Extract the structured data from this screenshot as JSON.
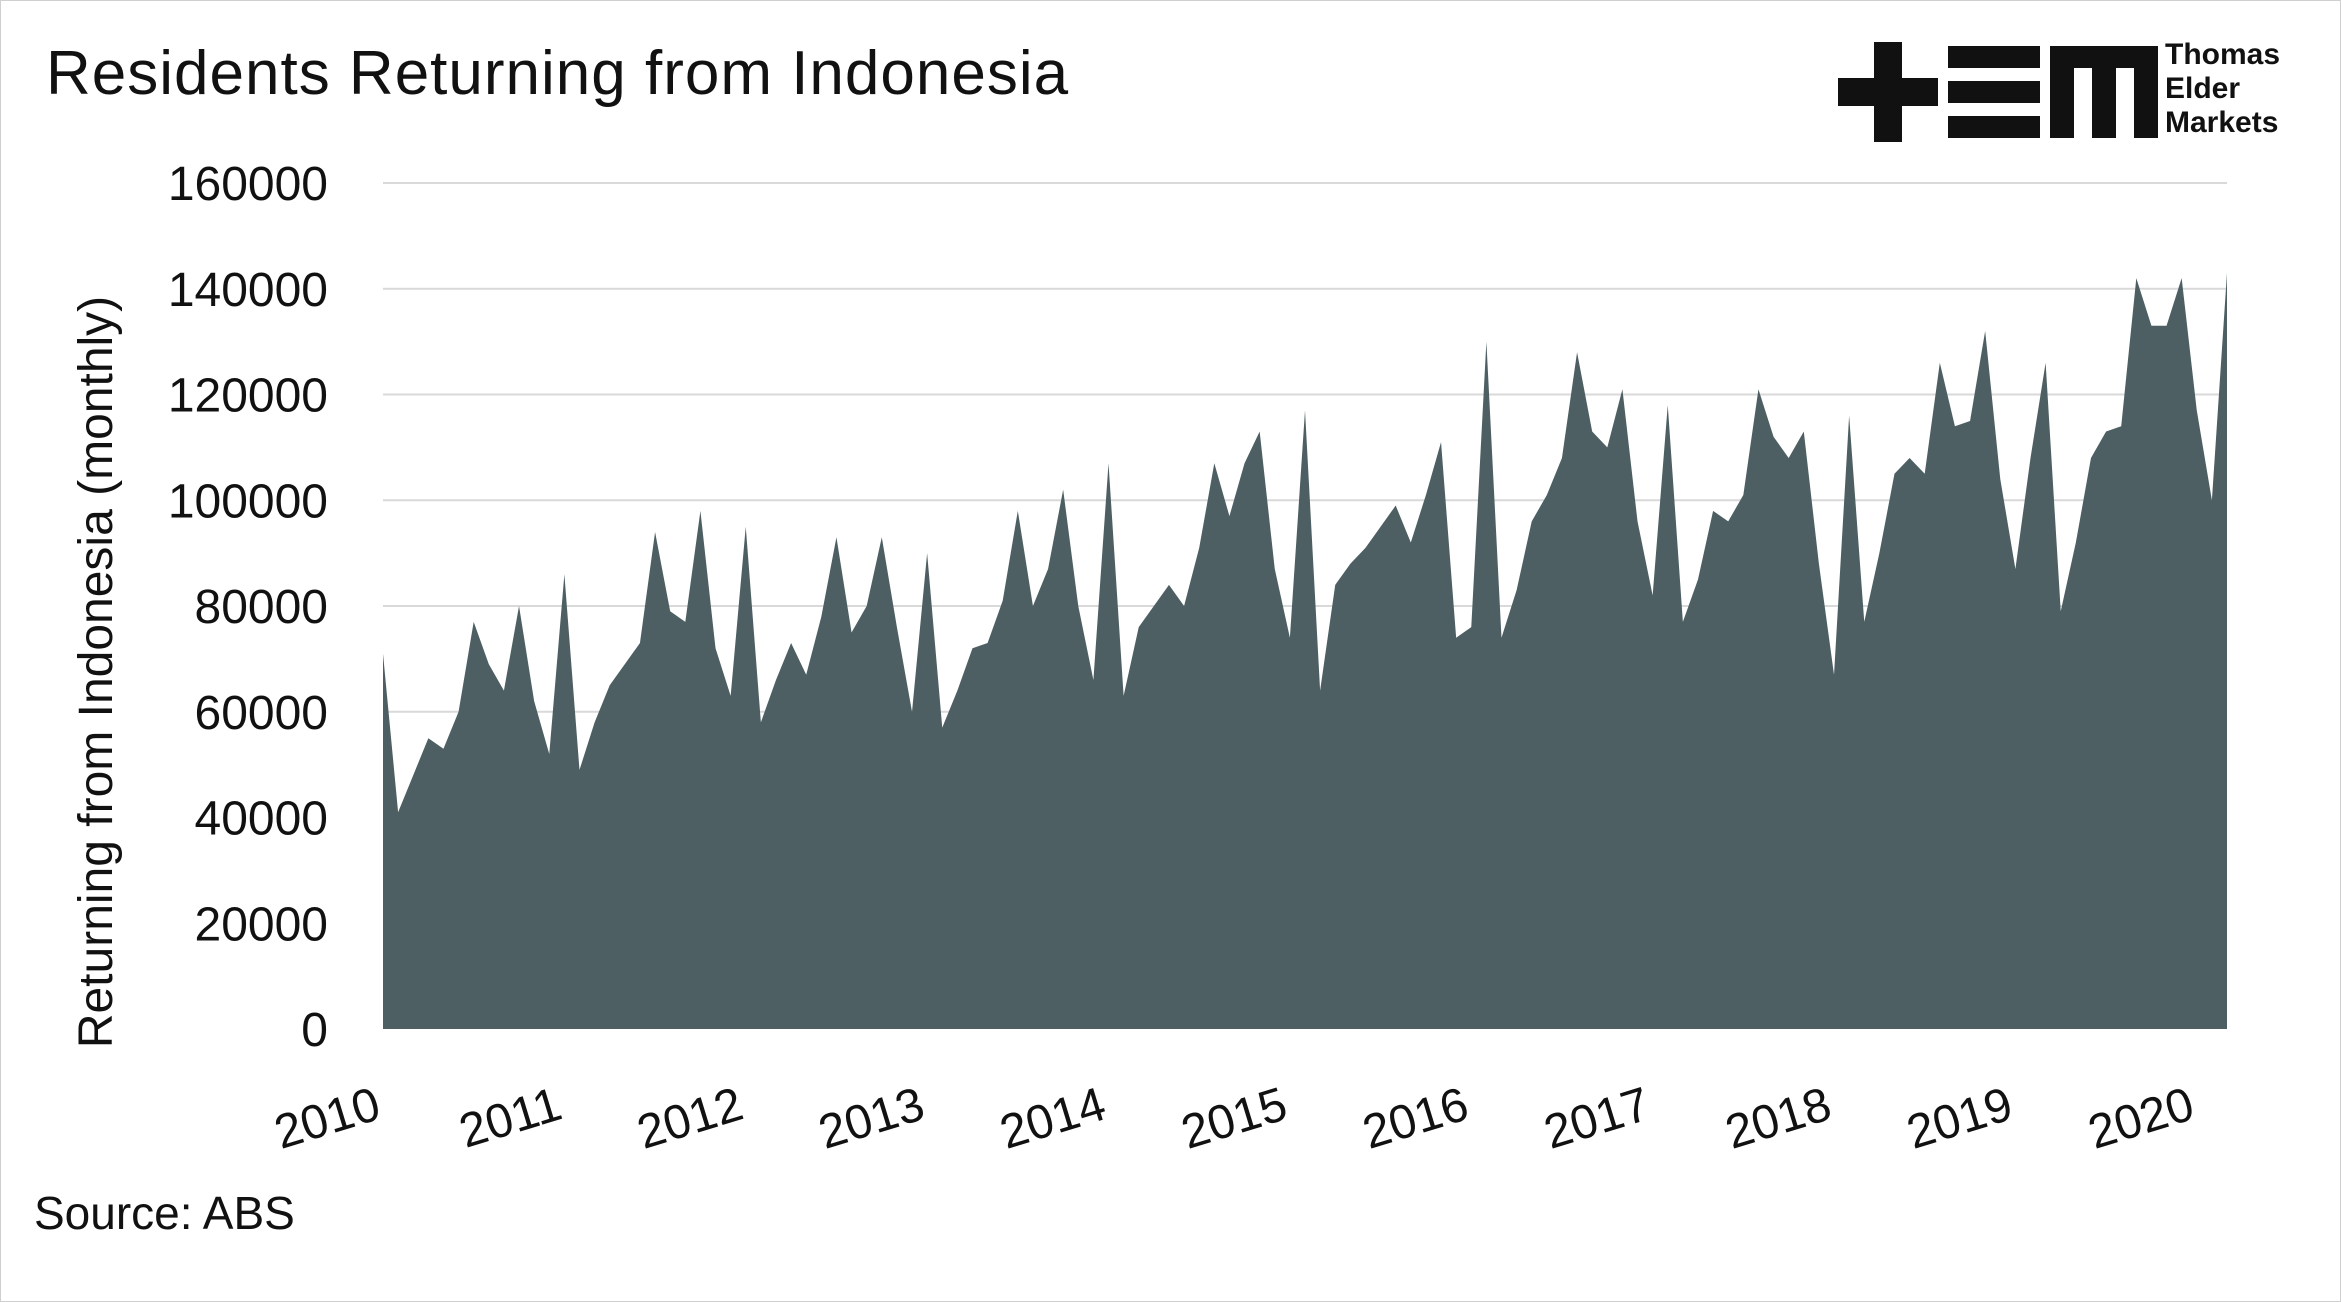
{
  "chart_data": {
    "type": "area",
    "title": "Residents Returning from Indonesia",
    "ylabel": "Returning from Indonesia (monthly)",
    "xlabel": "",
    "ylim": [
      0,
      160000
    ],
    "yticks": [
      "0",
      "20000",
      "40000",
      "60000",
      "80000",
      "100000",
      "120000",
      "140000",
      "160000"
    ],
    "xticks": [
      "2010",
      "2011",
      "2012",
      "2013",
      "2014",
      "2015",
      "2016",
      "2017",
      "2018",
      "2019",
      "2020"
    ],
    "x_start": "2010-01",
    "x_frequency": "monthly",
    "grid": true,
    "fill_color": "#4d5f62",
    "series": [
      {
        "values": [
          71000,
          41000,
          48000,
          55000,
          53000,
          60000,
          77000,
          69000,
          64000,
          80000,
          62000,
          52000,
          86000,
          49000,
          58000,
          65000,
          69000,
          73000,
          94000,
          79000,
          77000,
          98000,
          72000,
          63000,
          95000,
          58000,
          66000,
          73000,
          67000,
          78000,
          93000,
          75000,
          80000,
          93000,
          76000,
          60000,
          90000,
          57000,
          64000,
          72000,
          73000,
          81000,
          98000,
          80000,
          87000,
          102000,
          80000,
          66000,
          107000,
          63000,
          76000,
          80000,
          84000,
          80000,
          91000,
          107000,
          97000,
          107000,
          113000,
          87000,
          74000,
          117000,
          64000,
          84000,
          88000,
          91000,
          95000,
          99000,
          92000,
          101000,
          111000,
          74000,
          76000,
          130000,
          74000,
          83000,
          96000,
          101000,
          108000,
          128000,
          113000,
          110000,
          121000,
          96000,
          82000,
          118000,
          77000,
          85000,
          98000,
          96000,
          101000,
          121000,
          112000,
          108000,
          113000,
          88000,
          67000,
          116000,
          77000,
          90000,
          105000,
          108000,
          105000,
          126000,
          114000,
          115000,
          132000,
          104000,
          87000,
          108000,
          126000,
          79000,
          92000,
          108000,
          113000,
          114000,
          142000,
          133000,
          133000,
          142000,
          117000,
          100000,
          143000
        ]
      }
    ],
    "source": "Source: ABS",
    "logo": {
      "icon": "tem-logo-icon",
      "lines": [
        "Thomas",
        "Elder",
        "Markets"
      ]
    }
  }
}
